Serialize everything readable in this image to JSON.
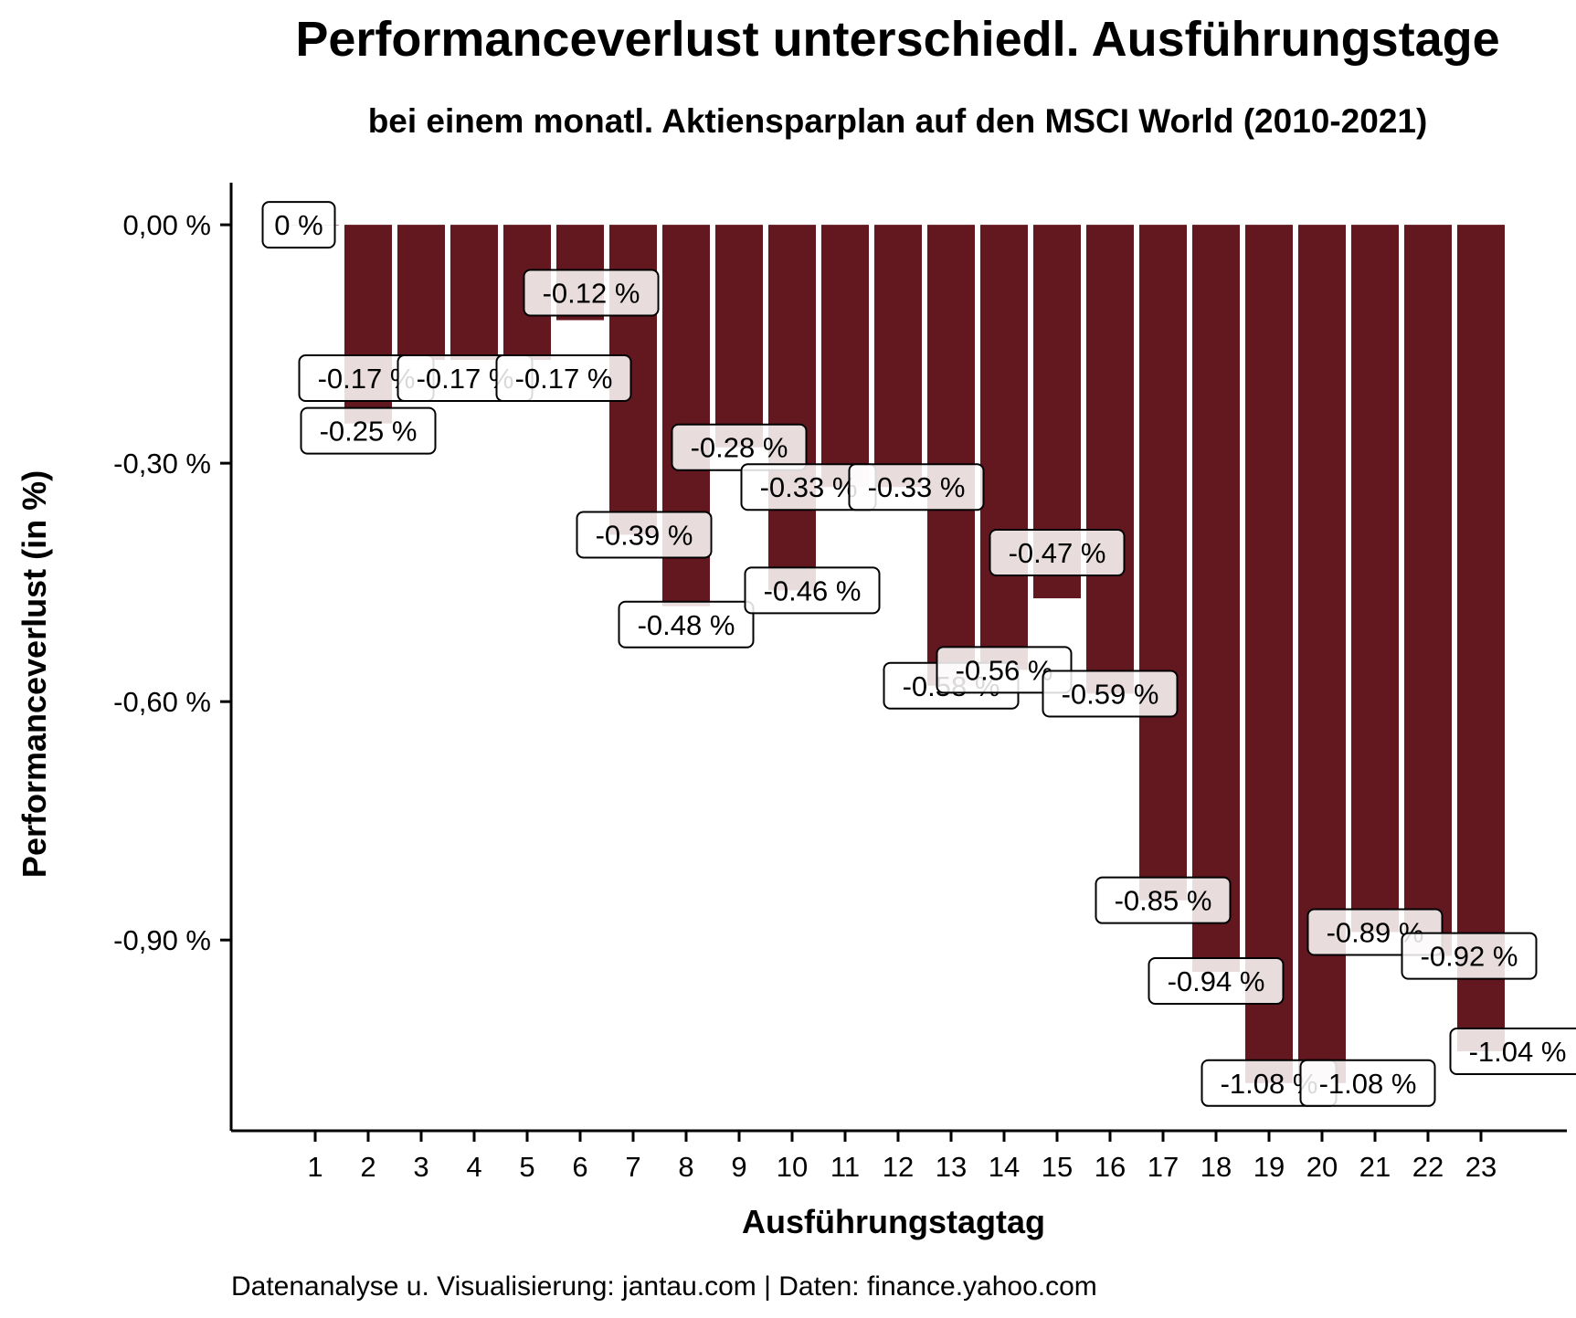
{
  "chart_data": {
    "type": "bar",
    "title": "Performanceverlust unterschiedl. Ausführungstage",
    "subtitle": "bei einem monatl. Aktiensparplan auf den MSCI World (2010-2021)",
    "xlabel": "Ausführungstagtag",
    "ylabel": "Performanceverlust (in %)",
    "caption": "Datenanalyse u. Visualisierung: jantau.com | Daten: finance.yahoo.com",
    "categories": [
      "1",
      "2",
      "3",
      "4",
      "5",
      "6",
      "7",
      "8",
      "9",
      "10",
      "11",
      "12",
      "13",
      "14",
      "15",
      "16",
      "17",
      "18",
      "19",
      "20",
      "21",
      "22",
      "23"
    ],
    "values": [
      0,
      -0.25,
      -0.17,
      -0.17,
      -0.17,
      -0.12,
      -0.39,
      -0.48,
      -0.28,
      -0.46,
      -0.33,
      -0.33,
      -0.58,
      -0.56,
      -0.47,
      -0.59,
      -0.85,
      -0.94,
      -1.08,
      -1.08,
      -0.89,
      -0.92,
      -1.04
    ],
    "data_labels": [
      "0 %",
      "-0.25 %",
      "-0.17 %",
      "-0.17 %",
      "-0.17 %",
      "-0.12 %",
      "-0.39 %",
      "-0.48 %",
      "-0.28 %",
      "-0.46 %",
      "-0.33 %",
      "-0.33 %",
      "-0.58 %",
      "-0.56 %",
      "-0.47 %",
      "-0.59 %",
      "-0.85 %",
      "-0.94 %",
      "-1.08 %",
      "-1.08 %",
      "-0.89 %",
      "-0.92 %",
      "-1.04 %"
    ],
    "y_ticks": [
      0,
      -0.3,
      -0.6,
      -0.9
    ],
    "y_tick_labels": [
      "0,00 %",
      "-0,30 %",
      "-0,60 %",
      "-0,90 %"
    ],
    "ylim": [
      -1.14,
      0.053
    ],
    "grid": false,
    "legend": "none",
    "bar_color": "#631820",
    "label_fill": "#ffffff"
  }
}
